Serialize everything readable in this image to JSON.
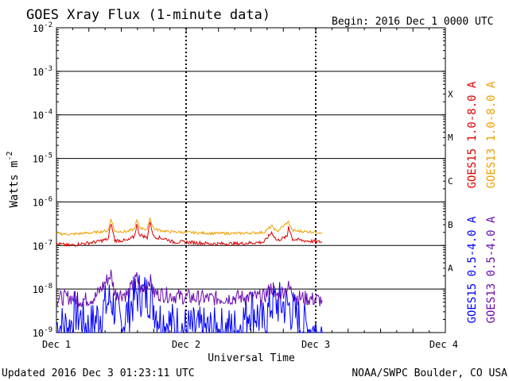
{
  "header": {
    "title": "GOES Xray Flux (1-minute data)",
    "begin": "Begin:  2016 Dec 1 0000 UTC"
  },
  "footer": {
    "updated": "Updated 2016 Dec  3 01:23:11 UTC",
    "source": "NOAA/SWPC Boulder, CO USA"
  },
  "chart_data": {
    "type": "line",
    "title": "GOES Xray Flux (1-minute data)",
    "xlabel": "Universal Time",
    "ylabel": "Watts m",
    "ylabel_sup": "-2",
    "y_scale": "log",
    "ylim": [
      1e-09,
      0.01
    ],
    "xlim_days": [
      0,
      3
    ],
    "x_ticks": [
      {
        "day": 0,
        "label": "Dec 1"
      },
      {
        "day": 1,
        "label": "Dec 2"
      },
      {
        "day": 2,
        "label": "Dec 3"
      },
      {
        "day": 3,
        "label": "Dec 4"
      }
    ],
    "y_ticks": [
      {
        "exp": -2,
        "base": "10",
        "sup": "-2"
      },
      {
        "exp": -3,
        "base": "10",
        "sup": "-3"
      },
      {
        "exp": -4,
        "base": "10",
        "sup": "-4"
      },
      {
        "exp": -5,
        "base": "10",
        "sup": "-5"
      },
      {
        "exp": -6,
        "base": "10",
        "sup": "-6"
      },
      {
        "exp": -7,
        "base": "10",
        "sup": "-7"
      },
      {
        "exp": -8,
        "base": "10",
        "sup": "-8"
      },
      {
        "exp": -9,
        "base": "10",
        "sup": "-9"
      }
    ],
    "flare_classes": [
      {
        "label": "X",
        "exp": -3.5
      },
      {
        "label": "M",
        "exp": -4.5
      },
      {
        "label": "C",
        "exp": -5.5
      },
      {
        "label": "B",
        "exp": -6.5
      },
      {
        "label": "A",
        "exp": -7.5
      }
    ],
    "series": [
      {
        "name": "GOES15 1.0-8.0 A",
        "color": "#dd0000",
        "data": [
          [
            0,
            1.1e-07
          ],
          [
            0.1,
            1e-07
          ],
          [
            0.2,
            1.1e-07
          ],
          [
            0.3,
            1.2e-07
          ],
          [
            0.4,
            1.4e-07
          ],
          [
            0.42,
            3.3e-07
          ],
          [
            0.45,
            1.3e-07
          ],
          [
            0.55,
            1.3e-07
          ],
          [
            0.6,
            1.6e-07
          ],
          [
            0.62,
            3e-07
          ],
          [
            0.64,
            1.8e-07
          ],
          [
            0.7,
            1.5e-07
          ],
          [
            0.72,
            3.5e-07
          ],
          [
            0.75,
            1.6e-07
          ],
          [
            0.85,
            1.4e-07
          ],
          [
            0.9,
            1.2e-07
          ],
          [
            1.0,
            1.2e-07
          ],
          [
            1.2,
            1.1e-07
          ],
          [
            1.4,
            1.1e-07
          ],
          [
            1.6,
            1.2e-07
          ],
          [
            1.66,
            2e-07
          ],
          [
            1.7,
            1.3e-07
          ],
          [
            1.78,
            1.6e-07
          ],
          [
            1.79,
            2.8e-07
          ],
          [
            1.82,
            1.4e-07
          ],
          [
            1.9,
            1.3e-07
          ],
          [
            2.05,
            1.2e-07
          ]
        ]
      },
      {
        "name": "GOES13 1.0-8.0 A",
        "color": "#f0a000",
        "data": [
          [
            0,
            1.9e-07
          ],
          [
            0.1,
            1.8e-07
          ],
          [
            0.2,
            1.9e-07
          ],
          [
            0.3,
            2e-07
          ],
          [
            0.4,
            2.2e-07
          ],
          [
            0.42,
            4.2e-07
          ],
          [
            0.45,
            2.1e-07
          ],
          [
            0.55,
            2.1e-07
          ],
          [
            0.6,
            2.4e-07
          ],
          [
            0.62,
            3.8e-07
          ],
          [
            0.64,
            2.6e-07
          ],
          [
            0.7,
            2.3e-07
          ],
          [
            0.72,
            4.3e-07
          ],
          [
            0.75,
            2.4e-07
          ],
          [
            0.85,
            2.1e-07
          ],
          [
            1.0,
            2e-07
          ],
          [
            1.2,
            1.9e-07
          ],
          [
            1.4,
            1.9e-07
          ],
          [
            1.6,
            2e-07
          ],
          [
            1.66,
            2.8e-07
          ],
          [
            1.7,
            2.1e-07
          ],
          [
            1.79,
            3.5e-07
          ],
          [
            1.82,
            2.2e-07
          ],
          [
            1.9,
            2.1e-07
          ],
          [
            2.05,
            2e-07
          ]
        ]
      },
      {
        "name": "GOES15 0.5-4.0 A",
        "color": "#0000ff",
        "data": [
          [
            0,
            1.5e-09
          ],
          [
            0.1,
            1.3e-09
          ],
          [
            0.15,
            3e-09
          ],
          [
            0.25,
            1.2e-09
          ],
          [
            0.42,
            6e-09
          ],
          [
            0.5,
            1.5e-09
          ],
          [
            0.62,
            8e-09
          ],
          [
            0.72,
            7e-09
          ],
          [
            0.8,
            2e-09
          ],
          [
            0.9,
            1.5e-09
          ],
          [
            1.0,
            1.2e-09
          ],
          [
            1.2,
            1.1e-09
          ],
          [
            1.4,
            1.2e-09
          ],
          [
            1.5,
            4e-09
          ],
          [
            1.6,
            1.5e-09
          ],
          [
            1.66,
            5e-09
          ],
          [
            1.79,
            4e-09
          ],
          [
            1.9,
            1.5e-09
          ],
          [
            2.0,
            1.1e-09
          ],
          [
            2.05,
            1e-09
          ]
        ]
      },
      {
        "name": "GOES13 0.5-4.0 A",
        "color": "#6a0dad",
        "data": [
          [
            0,
            6e-09
          ],
          [
            0.1,
            6.5e-09
          ],
          [
            0.2,
            5.5e-09
          ],
          [
            0.3,
            6.5e-09
          ],
          [
            0.42,
            2.2e-08
          ],
          [
            0.45,
            8e-09
          ],
          [
            0.55,
            7.5e-09
          ],
          [
            0.62,
            1.8e-08
          ],
          [
            0.66,
            8.5e-09
          ],
          [
            0.72,
            1.7e-08
          ],
          [
            0.75,
            8e-09
          ],
          [
            0.9,
            7e-09
          ],
          [
            1.0,
            6.5e-09
          ],
          [
            1.2,
            6e-09
          ],
          [
            1.4,
            6.5e-09
          ],
          [
            1.6,
            6.5e-09
          ],
          [
            1.66,
            1.1e-08
          ],
          [
            1.7,
            7e-09
          ],
          [
            1.79,
            1.1e-08
          ],
          [
            1.85,
            6.5e-09
          ],
          [
            1.95,
            6e-09
          ],
          [
            2.05,
            5.5e-09
          ]
        ]
      }
    ]
  }
}
